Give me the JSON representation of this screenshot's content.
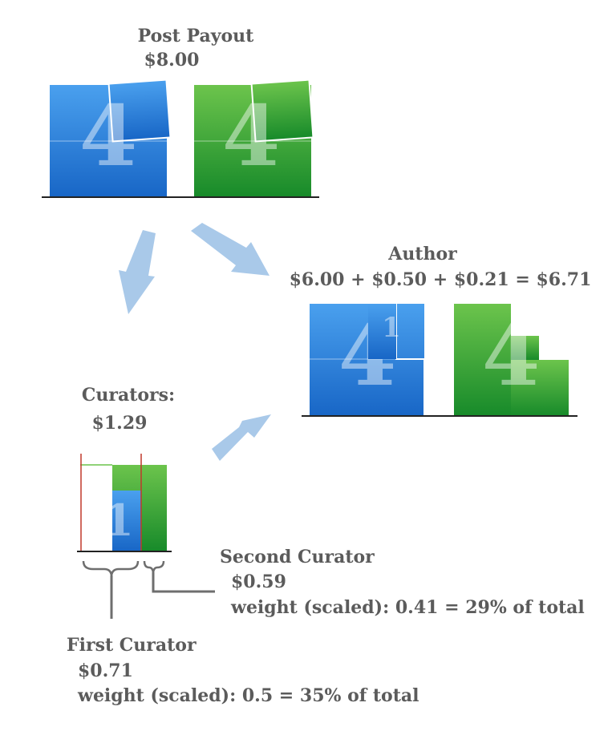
{
  "post_payout": {
    "title": "Post Payout",
    "amount": "$8.00",
    "blue_digit": "4",
    "green_digit": "4"
  },
  "author": {
    "title": "Author",
    "equation": "$6.00 + $0.50 + $0.21 = $6.71",
    "blue_digits": [
      "4",
      "1"
    ],
    "green_digit": "4"
  },
  "curators": {
    "title": "Curators:",
    "amount": "$1.29",
    "digit": "1"
  },
  "second_curator": {
    "title": "Second Curator",
    "amount": "$0.59",
    "weight": "weight (scaled): 0.41 = 29% of total"
  },
  "first_curator": {
    "title": "First Curator",
    "amount": "$0.71",
    "weight": "weight (scaled): 0.5 = 35%  of total"
  },
  "colors": {
    "blue_top": "#4aa0ee",
    "blue_bottom": "#1866c6",
    "green_top": "#6cc44c",
    "green_bottom": "#178a2a",
    "arrow": "#a9c9e9",
    "label": "#5b5b5b",
    "bracket": "#6e6e6e",
    "red_line": "#c0392b"
  }
}
